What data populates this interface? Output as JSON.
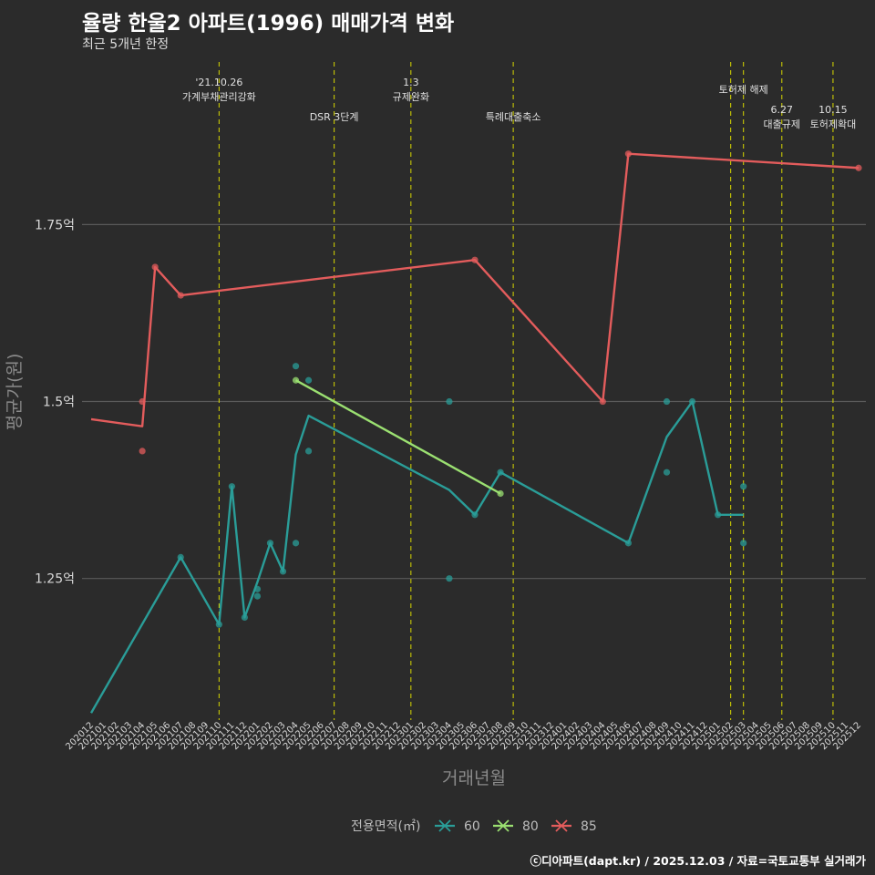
{
  "title": "율량 한울2 아파트(1996) 매매가격 변화",
  "subtitle": "최근 5개년 한정",
  "caption": "ⓒ디아파트(dapt.kr) / 2025.12.03 / 자료=국토교통부 실거래가",
  "chart_data": {
    "type": "line",
    "xlabel": "거래년월",
    "ylabel": "평균가(원)",
    "ylim": [
      1.05,
      1.99
    ],
    "yticks": [
      1.25,
      1.5,
      1.75
    ],
    "ytick_labels": [
      "1.25억",
      "1.5억",
      "1.75억"
    ],
    "x_range": [
      0,
      60
    ],
    "x_ticks": [
      "202012",
      "202101",
      "202102",
      "202103",
      "202104",
      "202105",
      "202106",
      "202107",
      "202108",
      "202109",
      "202110",
      "202111",
      "202112",
      "202201",
      "202202",
      "202203",
      "202204",
      "202205",
      "202206",
      "202207",
      "202208",
      "202209",
      "202210",
      "202211",
      "202212",
      "202301",
      "202302",
      "202303",
      "202304",
      "202305",
      "202306",
      "202307",
      "202308",
      "202309",
      "202310",
      "202311",
      "202312",
      "202401",
      "202402",
      "202403",
      "202404",
      "202405",
      "202406",
      "202407",
      "202408",
      "202409",
      "202410",
      "202411",
      "202412",
      "202501",
      "202502",
      "202503",
      "202504",
      "202505",
      "202506",
      "202507",
      "202508",
      "202509",
      "202510",
      "202511",
      "202512"
    ],
    "legend_title": "전용면적(㎡)",
    "series": [
      {
        "name": "60",
        "color": "#2a9d98",
        "line": [
          [
            0,
            1.06
          ],
          [
            7,
            1.28
          ],
          [
            10,
            1.185
          ],
          [
            11,
            1.38
          ],
          [
            12,
            1.195
          ],
          [
            13,
            1.245
          ],
          [
            14,
            1.3
          ],
          [
            15,
            1.26
          ],
          [
            16,
            1.425
          ],
          [
            17,
            1.48
          ],
          [
            28,
            1.375
          ],
          [
            30,
            1.34
          ],
          [
            32,
            1.4
          ],
          [
            42,
            1.3
          ],
          [
            45,
            1.45
          ],
          [
            47,
            1.5
          ],
          [
            49,
            1.34
          ],
          [
            51,
            1.34
          ]
        ],
        "points": [
          [
            7,
            1.28
          ],
          [
            10,
            1.185
          ],
          [
            11,
            1.38
          ],
          [
            12,
            1.195
          ],
          [
            13,
            1.235
          ],
          [
            13,
            1.225
          ],
          [
            14,
            1.3
          ],
          [
            15,
            1.26
          ],
          [
            16,
            1.3
          ],
          [
            16,
            1.55
          ],
          [
            17,
            1.53
          ],
          [
            17,
            1.43
          ],
          [
            28,
            1.5
          ],
          [
            28,
            1.25
          ],
          [
            30,
            1.34
          ],
          [
            32,
            1.4
          ],
          [
            42,
            1.3
          ],
          [
            45,
            1.5
          ],
          [
            45,
            1.4
          ],
          [
            47,
            1.5
          ],
          [
            49,
            1.34
          ],
          [
            51,
            1.38
          ],
          [
            51,
            1.3
          ]
        ]
      },
      {
        "name": "80",
        "color": "#9be071",
        "line": [
          [
            16,
            1.53
          ],
          [
            32,
            1.37
          ]
        ],
        "points": [
          [
            16,
            1.53
          ],
          [
            32,
            1.37
          ]
        ]
      },
      {
        "name": "85",
        "color": "#e35c5c",
        "line": [
          [
            0,
            1.475
          ],
          [
            4,
            1.465
          ],
          [
            5,
            1.69
          ],
          [
            7,
            1.65
          ],
          [
            30,
            1.7
          ],
          [
            40,
            1.5
          ],
          [
            42,
            1.85
          ],
          [
            60,
            1.83
          ]
        ],
        "points": [
          [
            4,
            1.5
          ],
          [
            4,
            1.43
          ],
          [
            5,
            1.69
          ],
          [
            7,
            1.65
          ],
          [
            30,
            1.7
          ],
          [
            40,
            1.5
          ],
          [
            42,
            1.85
          ],
          [
            60,
            1.83
          ]
        ]
      }
    ],
    "vlines": [
      {
        "x": 10,
        "label": [
          "'21.10.26",
          "가계부채관리강화"
        ],
        "row": 0
      },
      {
        "x": 19,
        "label": [
          "DSR 3단계"
        ],
        "row": 2
      },
      {
        "x": 25,
        "label": [
          "1.3",
          "규제완화"
        ],
        "row": 0
      },
      {
        "x": 33,
        "label": [
          "특례대출축소"
        ],
        "row": 2
      },
      {
        "x": 50,
        "label": [],
        "row": 0
      },
      {
        "x": 51,
        "label": [
          "토허제 해제"
        ],
        "row": 1
      },
      {
        "x": 54,
        "label": [
          "6.27",
          "대출규제"
        ],
        "row": 3
      },
      {
        "x": 58,
        "label": [
          "10.15",
          "토허제확대"
        ],
        "row": 3
      }
    ]
  }
}
